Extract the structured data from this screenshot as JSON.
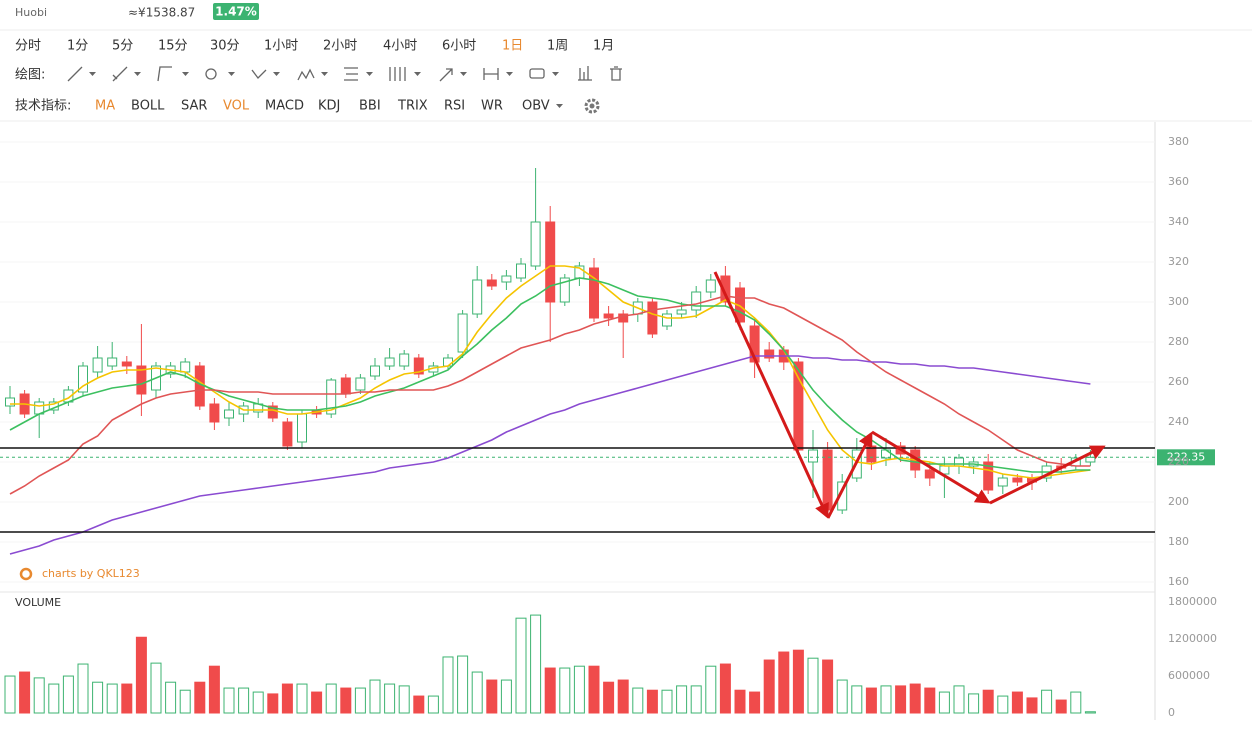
{
  "header": {
    "exchange": "Huobi",
    "price": "≈¥1538.87",
    "change": "1.47%"
  },
  "timeframes": [
    "分时",
    "1分",
    "5分",
    "15分",
    "30分",
    "1小时",
    "2小时",
    "4小时",
    "6小时",
    "1日",
    "1周",
    "1月"
  ],
  "active_timeframe": 9,
  "draw_label": "绘图:",
  "indicator_label": "技术指标:",
  "indicators": [
    "MA",
    "BOLL",
    "SAR",
    "VOL",
    "MACD",
    "KDJ",
    "BBI",
    "TRIX",
    "RSI",
    "WR",
    "OBV"
  ],
  "active_indicators": [
    0,
    3
  ],
  "watermark": "charts by QKL123",
  "chart_data": {
    "type": "candlestick",
    "up_color": "#3cb371",
    "down_color": "#f04b4b",
    "ylim": [
      155,
      390
    ],
    "yticks": [
      160,
      180,
      200,
      220,
      240,
      260,
      280,
      300,
      320,
      340,
      360,
      380
    ],
    "grid": true,
    "open": [
      248,
      254,
      244,
      246,
      250,
      255,
      265,
      268,
      270,
      268,
      256,
      264,
      265,
      268,
      249,
      242,
      244,
      245,
      248,
      240,
      230,
      246,
      244,
      262,
      256,
      263,
      268,
      268,
      272,
      265,
      268,
      275,
      294,
      311,
      310,
      312,
      318,
      340,
      300,
      312,
      317,
      294,
      294,
      294,
      300,
      288,
      294,
      296,
      305,
      313,
      307,
      288,
      276,
      276,
      270,
      220,
      226,
      196,
      212,
      228,
      222,
      228,
      226,
      216,
      214,
      218,
      218,
      220,
      208,
      212,
      212,
      212,
      218,
      218,
      220
    ],
    "high": [
      258,
      256,
      252,
      252,
      258,
      270,
      278,
      280,
      273,
      289,
      270,
      270,
      272,
      270,
      252,
      250,
      250,
      252,
      250,
      242,
      246,
      248,
      262,
      264,
      264,
      272,
      277,
      276,
      274,
      270,
      274,
      296,
      318,
      314,
      316,
      322,
      367,
      348,
      314,
      320,
      322,
      298,
      296,
      302,
      302,
      296,
      300,
      308,
      314,
      318,
      310,
      292,
      280,
      278,
      272,
      236,
      230,
      214,
      232,
      232,
      232,
      230,
      228,
      220,
      222,
      224,
      222,
      224,
      214,
      214,
      214,
      220,
      222,
      224,
      226
    ],
    "low": [
      244,
      242,
      232,
      244,
      248,
      253,
      262,
      266,
      264,
      243,
      252,
      262,
      262,
      246,
      236,
      238,
      240,
      242,
      240,
      226,
      227,
      242,
      242,
      252,
      254,
      261,
      266,
      266,
      262,
      263,
      266,
      272,
      292,
      306,
      306,
      310,
      316,
      280,
      298,
      308,
      290,
      288,
      272,
      290,
      282,
      286,
      292,
      292,
      302,
      298,
      286,
      262,
      270,
      266,
      224,
      202,
      194,
      194,
      210,
      216,
      218,
      220,
      212,
      208,
      202,
      214,
      214,
      204,
      204,
      208,
      206,
      210,
      214,
      216,
      218
    ],
    "close": [
      252,
      244,
      250,
      250,
      256,
      268,
      272,
      272,
      268,
      254,
      268,
      268,
      270,
      248,
      240,
      246,
      248,
      249,
      242,
      228,
      244,
      244,
      261,
      254,
      262,
      268,
      272,
      274,
      264,
      268,
      272,
      294,
      311,
      308,
      313,
      319,
      340,
      300,
      312,
      318,
      292,
      292,
      290,
      300,
      284,
      294,
      296,
      305,
      311,
      300,
      290,
      270,
      272,
      270,
      226,
      226,
      196,
      210,
      226,
      220,
      226,
      224,
      216,
      212,
      218,
      222,
      220,
      206,
      212,
      210,
      210,
      218,
      217,
      222,
      222.35
    ],
    "series": [
      {
        "color": "#f5c400",
        "values": [
          249,
          249,
          248,
          249,
          252,
          258,
          262,
          265,
          266,
          266,
          267,
          266,
          265,
          260,
          255,
          250,
          246,
          246,
          246,
          244,
          244,
          245,
          246,
          249,
          252,
          257,
          261,
          264,
          265,
          267,
          268,
          274,
          285,
          294,
          302,
          308,
          313,
          318,
          318,
          317,
          312,
          306,
          300,
          297,
          294,
          292,
          292,
          293,
          297,
          301,
          298,
          292,
          285,
          276,
          262,
          249,
          236,
          226,
          220,
          219,
          221,
          222,
          221,
          220,
          218,
          218,
          217,
          216,
          214,
          213,
          212,
          213,
          214,
          215,
          216
        ]
      },
      {
        "color": "#3cc060",
        "values": [
          236,
          240,
          244,
          247,
          250,
          253,
          255,
          257,
          258,
          259,
          262,
          265,
          263,
          259,
          256,
          253,
          251,
          249,
          247,
          246,
          246,
          246,
          247,
          248,
          250,
          253,
          255,
          257,
          260,
          263,
          266,
          273,
          279,
          286,
          292,
          299,
          303,
          308,
          310,
          312,
          311,
          309,
          306,
          303,
          302,
          301,
          299,
          298,
          298,
          298,
          295,
          291,
          284,
          276,
          266,
          256,
          248,
          241,
          235,
          231,
          226,
          221,
          220,
          219,
          219,
          219,
          219,
          218,
          217,
          216,
          215,
          215,
          215,
          216,
          216
        ]
      },
      {
        "color": "#e05555",
        "values": [
          204,
          208,
          213,
          217,
          221,
          229,
          233,
          241,
          245,
          249,
          252,
          254,
          255,
          256,
          256,
          255,
          255,
          255,
          254,
          254,
          254,
          254,
          254,
          254,
          255,
          255,
          256,
          256,
          256,
          256,
          258,
          261,
          265,
          269,
          273,
          277,
          279,
          281,
          284,
          286,
          289,
          291,
          293,
          294,
          296,
          297,
          298,
          299,
          301,
          303,
          302,
          302,
          299,
          297,
          293,
          289,
          285,
          281,
          275,
          270,
          265,
          261,
          257,
          253,
          249,
          244,
          240,
          236,
          231,
          226,
          223,
          220,
          219,
          218,
          218
        ]
      },
      {
        "color": "#8a4bd1",
        "values": [
          174,
          176,
          178,
          181,
          183,
          185,
          188,
          191,
          193,
          195,
          197,
          199,
          201,
          203,
          204,
          205,
          206,
          207,
          208,
          209,
          210,
          211,
          212,
          213,
          214,
          215,
          217,
          218,
          219,
          220,
          222,
          225,
          228,
          231,
          235,
          238,
          241,
          244,
          246,
          249,
          251,
          253,
          255,
          257,
          259,
          261,
          263,
          265,
          267,
          269,
          271,
          273,
          273,
          273,
          273,
          272,
          272,
          271,
          271,
          270,
          270,
          269,
          269,
          268,
          268,
          267,
          267,
          266,
          265,
          264,
          263,
          262,
          261,
          260,
          259
        ]
      }
    ],
    "hlines": [
      227,
      185
    ],
    "last_price": 222.35,
    "volume": {
      "label": "VOLUME",
      "ylim": [
        0,
        1900000
      ],
      "yticks": [
        0,
        600000,
        1200000,
        1800000
      ],
      "values": [
        600000,
        665000,
        570000,
        470000,
        600000,
        795000,
        500000,
        470000,
        470000,
        1230000,
        810000,
        500000,
        370000,
        500000,
        760000,
        405000,
        405000,
        340000,
        310000,
        470000,
        470000,
        340000,
        470000,
        405000,
        405000,
        535000,
        470000,
        440000,
        275000,
        275000,
        910000,
        925000,
        665000,
        535000,
        535000,
        1540000,
        1590000,
        730000,
        730000,
        760000,
        760000,
        500000,
        535000,
        405000,
        370000,
        370000,
        440000,
        440000,
        760000,
        795000,
        370000,
        340000,
        860000,
        990000,
        1020000,
        890000,
        860000,
        535000,
        440000,
        405000,
        440000,
        440000,
        470000,
        405000,
        340000,
        440000,
        310000,
        370000,
        275000,
        340000,
        245000,
        370000,
        210000,
        340000,
        20000
      ]
    }
  }
}
